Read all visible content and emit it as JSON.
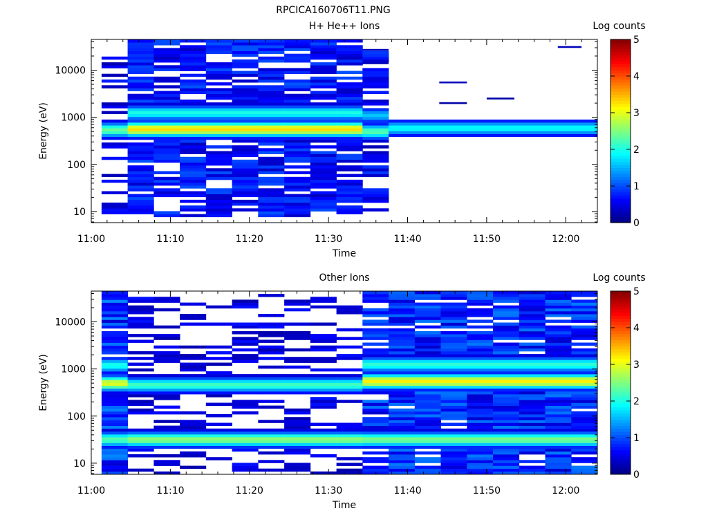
{
  "title": "RPCICA160706T11.PNG",
  "colors": {
    "colormap": [
      "#00007f",
      "#0000ff",
      "#007fff",
      "#00ffff",
      "#7fff7f",
      "#ffff00",
      "#ff7f00",
      "#ff0000",
      "#7f0000"
    ],
    "background": "#ffffff"
  },
  "chart_data": [
    {
      "type": "heatmap",
      "title": "H+ He++ Ions",
      "xlabel": "Time",
      "ylabel": "Energy (eV)",
      "x_ticks": [
        "11:00",
        "11:10",
        "11:20",
        "11:30",
        "11:40",
        "11:50",
        "12:00"
      ],
      "y_ticks": [
        "10",
        "100",
        "1000",
        "10000"
      ],
      "y_tick_values": [
        10,
        100,
        1000,
        10000
      ],
      "yscale": "log",
      "xlim_minutes": [
        0,
        64
      ],
      "ylim": [
        5.8,
        45000
      ],
      "colorbar": {
        "label": "Log counts",
        "ticks": [
          "0",
          "1",
          "2",
          "3",
          "4",
          "5"
        ],
        "range": [
          0,
          5
        ]
      },
      "time_bins_start_min": [
        1.3,
        4.6,
        7.9,
        11.2,
        14.5,
        17.8,
        21.1,
        24.4,
        27.7,
        31.0,
        34.3,
        37.6,
        40.9,
        44.2,
        47.5,
        50.8,
        54.1,
        57.4,
        60.7
      ],
      "time_bin_width_min": 3.3,
      "profiles": [
        {
          "from_bin": 0,
          "to_bin": 0,
          "ridge": [
            [
              540,
              2.4
            ]
          ],
          "bg": 0.6,
          "emax": 22000,
          "emin": 8,
          "fill": 0.42
        },
        {
          "from_bin": 1,
          "to_bin": 9,
          "ridge": [
            [
              560,
              3.3
            ],
            [
              1250,
              2.0
            ]
          ],
          "bg": 0.8,
          "emax": 42000,
          "emin": 8,
          "fill": 0.8
        },
        {
          "from_bin": 10,
          "to_bin": 10,
          "ridge": [
            [
              500,
              2.3
            ],
            [
              1100,
              1.6
            ]
          ],
          "bg": 0.7,
          "emax": 25000,
          "emin": 10,
          "fill": 0.5
        },
        {
          "from_bin": 11,
          "to_bin": 18,
          "ridge": [
            [
              590,
              1.9
            ]
          ],
          "bg": 0.0,
          "emax": 0,
          "emin": 0,
          "fill": 0.0
        }
      ],
      "lines": [
        {
          "t0": 34.3,
          "t1": 37.6,
          "e": 27000,
          "v": 0.3
        },
        {
          "t0": 34.3,
          "t1": 37.6,
          "e": 14000,
          "v": 0.3
        },
        {
          "t0": 44.0,
          "t1": 47.5,
          "e": 5500,
          "v": 0.3
        },
        {
          "t0": 44.0,
          "t1": 47.5,
          "e": 2000,
          "v": 0.2
        },
        {
          "t0": 50.0,
          "t1": 53.5,
          "e": 2500,
          "v": 0.2
        },
        {
          "t0": 59.0,
          "t1": 62.0,
          "e": 31000,
          "v": 0.3
        }
      ]
    },
    {
      "type": "heatmap",
      "title": "Other Ions",
      "xlabel": "Time",
      "ylabel": "Energy (eV)",
      "x_ticks": [
        "11:00",
        "11:10",
        "11:20",
        "11:30",
        "11:40",
        "11:50",
        "12:00"
      ],
      "y_ticks": [
        "10",
        "100",
        "1000",
        "10000"
      ],
      "y_tick_values": [
        10,
        100,
        1000,
        10000
      ],
      "yscale": "log",
      "xlim_minutes": [
        0,
        64
      ],
      "ylim": [
        5.8,
        45000
      ],
      "colorbar": {
        "label": "Log counts",
        "ticks": [
          "0",
          "1",
          "2",
          "3",
          "4",
          "5"
        ],
        "range": [
          0,
          5
        ]
      },
      "time_bins_start_min": [
        1.3,
        4.6,
        7.9,
        11.2,
        14.5,
        17.8,
        21.1,
        24.4,
        27.7,
        31.0,
        34.3,
        37.6,
        40.9,
        44.2,
        47.5,
        50.8,
        54.1,
        57.4,
        60.7
      ],
      "time_bin_width_min": 3.3,
      "profiles": [
        {
          "from_bin": 0,
          "to_bin": 0,
          "ridge": [
            [
              500,
              3.0
            ],
            [
              1200,
              2.0
            ],
            [
              32,
              2.3
            ]
          ],
          "bg": 1.0,
          "emax": 42000,
          "emin": 6,
          "fill": 0.88
        },
        {
          "from_bin": 1,
          "to_bin": 9,
          "ridge": [
            [
              460,
              2.2
            ],
            [
              32,
              2.6
            ]
          ],
          "bg": 0.55,
          "emax": 40000,
          "emin": 6,
          "fill": 0.35
        },
        {
          "from_bin": 10,
          "to_bin": 18,
          "ridge": [
            [
              550,
              3.2
            ],
            [
              1250,
              2.1
            ],
            [
              32,
              2.5
            ]
          ],
          "bg": 0.95,
          "emax": 42000,
          "emin": 6,
          "fill": 0.88
        }
      ],
      "lines": []
    }
  ]
}
